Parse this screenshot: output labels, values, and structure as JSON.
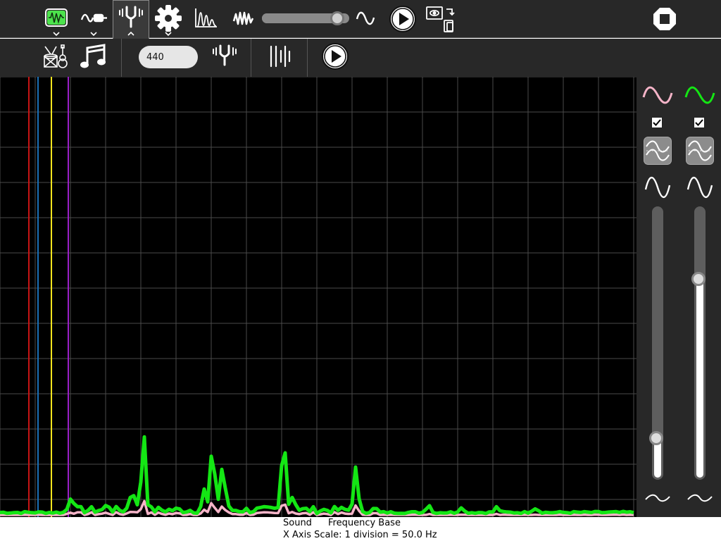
{
  "toolbar": {
    "tabs": [
      {
        "name": "oscilloscope-icon",
        "selected": false
      },
      {
        "name": "sensor-probe-icon",
        "selected": false
      },
      {
        "name": "tuning-fork-icon",
        "selected": true
      },
      {
        "name": "gear-icon",
        "selected": false
      },
      {
        "name": "spectrum-icon",
        "selected": false
      },
      {
        "name": "wave-icon",
        "selected": false
      }
    ],
    "volume_level": 0.9,
    "sine_icon": "sine-wave-icon",
    "play_icon": "play-icon",
    "capture_icon": "screenshot-capture-icon",
    "stop_icon": "stop-icon"
  },
  "tuning_toolbar": {
    "instrument_icon": "instruments-icon",
    "notes_icon": "music-notes-icon",
    "frequency_value": "440",
    "tuner_icon": "tuning-fork-icon",
    "tuning_lines_icon": "tuning-lines-icon",
    "play_icon": "play-icon"
  },
  "plot": {
    "markers": [
      {
        "color": "#c81414"
      },
      {
        "color": "#1a6fb5"
      },
      {
        "color": "#f5e61e"
      },
      {
        "color": "#9b20c9"
      }
    ],
    "colors": {
      "green": "#14e614",
      "pink": "#f5b4c8",
      "grid": "#4a4a4a"
    }
  },
  "channels": [
    {
      "color": "#f5b4c8",
      "checked": true,
      "gain_level": 0.13
    },
    {
      "color": "#14e614",
      "checked": true,
      "gain_level": 0.75
    }
  ],
  "status": {
    "line1_left": "Sound",
    "line1_right": "Frequency Base",
    "line2": "X Axis Scale: 1 division = 50.0 Hz"
  }
}
